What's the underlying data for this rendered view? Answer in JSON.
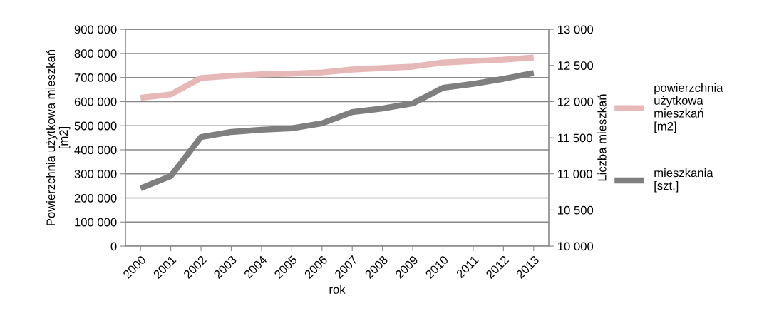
{
  "chart_data": {
    "type": "line",
    "xlabel": "rok",
    "ylabel": "Powierzchnia użytkowa mieszkań\n[m2]",
    "y2label": "Liczba mieszkań",
    "categories": [
      "2000",
      "2001",
      "2002",
      "2003",
      "2004",
      "2005",
      "2006",
      "2007",
      "2008",
      "2009",
      "2010",
      "2011",
      "2012",
      "2013"
    ],
    "series": [
      {
        "name": "powierzchnia\nużytkowa\nmieszkań\n[m2]",
        "color": "#e6b9b8",
        "values": [
          616000,
          630000,
          698000,
          707000,
          713000,
          716000,
          721000,
          733000,
          739000,
          745000,
          762000,
          768000,
          774000,
          783000
        ]
      },
      {
        "name": "mieszkania\n[szt.]",
        "color": "#7f7f7f",
        "axis": "y2",
        "values": [
          10800,
          10970,
          11510,
          11580,
          11610,
          11630,
          11700,
          11855,
          11905,
          11975,
          12190,
          12245,
          12315,
          12395
        ]
      }
    ],
    "ylim": [
      0,
      900000
    ],
    "yticks": [
      0,
      {
        "value": 100000,
        "label": "100 000"
      },
      {
        "value": 200000,
        "label": "200 000"
      },
      {
        "value": 300000,
        "label": "300 000"
      },
      {
        "value": 400000,
        "label": "400 000"
      },
      {
        "value": 500000,
        "label": "500 000"
      },
      {
        "value": 600000,
        "label": "600 000"
      },
      {
        "value": 700000,
        "label": "700 000"
      },
      {
        "value": 800000,
        "label": "800 000"
      },
      {
        "value": 900000,
        "label": "900 000"
      }
    ],
    "y2lim": [
      10000,
      13000
    ],
    "y2ticks": [
      {
        "value": 10000,
        "label": "10 000"
      },
      {
        "value": 10500,
        "label": "10 500"
      },
      {
        "value": 11000,
        "label": "11 000"
      },
      {
        "value": 11500,
        "label": "11 500"
      },
      {
        "value": 12000,
        "label": "12 000"
      },
      {
        "value": 12500,
        "label": "12 500"
      },
      {
        "value": 13000,
        "label": "13 000"
      }
    ],
    "grid": "y",
    "legend": "right",
    "marker": "none",
    "line_style": "solid"
  }
}
